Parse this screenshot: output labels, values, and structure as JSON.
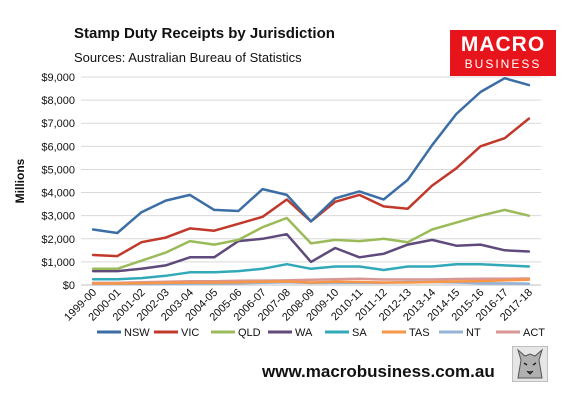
{
  "brand": {
    "line1": "MACRO",
    "line2": "BUSINESS"
  },
  "footer": {
    "url": "www.macrobusiness.com.au"
  },
  "chart_data": {
    "type": "line",
    "title": "Stamp Duty Receipts by Jurisdiction",
    "subtitle": "Sources: Australian Bureau of Statistics",
    "ylabel": "Millions",
    "xlabel": "",
    "ylim": [
      0,
      9000
    ],
    "yticks": [
      0,
      1000,
      2000,
      3000,
      4000,
      5000,
      6000,
      7000,
      8000,
      9000
    ],
    "ytick_labels": [
      "$0",
      "$1,000",
      "$2,000",
      "$3,000",
      "$4,000",
      "$5,000",
      "$6,000",
      "$7,000",
      "$8,000",
      "$9,000"
    ],
    "grid": true,
    "legend_position": "bottom",
    "categories": [
      "1999-00",
      "2000-01",
      "2001-02",
      "2002-03",
      "2003-04",
      "2004-05",
      "2005-06",
      "2006-07",
      "2007-08",
      "2008-09",
      "2009-10",
      "2010-11",
      "2011-12",
      "2012-13",
      "2013-14",
      "2014-15",
      "2015-16",
      "2016-17",
      "2017-18"
    ],
    "series": [
      {
        "name": "NSW",
        "color": "#3a6ea5",
        "values": [
          2400,
          2250,
          3150,
          3650,
          3900,
          3250,
          3200,
          4150,
          3900,
          2750,
          3750,
          4050,
          3700,
          4550,
          6050,
          7400,
          8350,
          8950,
          8650
        ]
      },
      {
        "name": "VIC",
        "color": "#c0392b",
        "values": [
          1300,
          1250,
          1850,
          2050,
          2450,
          2350,
          2650,
          2950,
          3700,
          2750,
          3600,
          3900,
          3400,
          3300,
          4300,
          5050,
          6000,
          6350,
          7200
        ]
      },
      {
        "name": "QLD",
        "color": "#9bbb59",
        "values": [
          700,
          700,
          1050,
          1400,
          1900,
          1750,
          1950,
          2500,
          2900,
          1800,
          1950,
          1900,
          2000,
          1850,
          2400,
          2700,
          3000,
          3250,
          3000
        ]
      },
      {
        "name": "WA",
        "color": "#604a7b",
        "values": [
          600,
          600,
          700,
          850,
          1200,
          1200,
          1900,
          2000,
          2200,
          1000,
          1600,
          1200,
          1350,
          1750,
          1950,
          1700,
          1750,
          1500,
          1450
        ]
      },
      {
        "name": "SA",
        "color": "#31a9b8",
        "values": [
          250,
          250,
          300,
          400,
          550,
          550,
          600,
          700,
          900,
          700,
          800,
          800,
          650,
          800,
          800,
          900,
          900,
          850,
          800
        ]
      },
      {
        "name": "TAS",
        "color": "#f79646",
        "values": [
          60,
          60,
          80,
          90,
          110,
          110,
          120,
          140,
          150,
          110,
          140,
          130,
          110,
          110,
          130,
          150,
          170,
          200,
          230
        ]
      },
      {
        "name": "NT",
        "color": "#95b3d7",
        "values": [
          30,
          30,
          40,
          40,
          60,
          70,
          80,
          100,
          120,
          90,
          100,
          100,
          100,
          130,
          130,
          110,
          80,
          70,
          60
        ]
      },
      {
        "name": "ACT",
        "color": "#d99694",
        "values": [
          90,
          90,
          120,
          140,
          160,
          160,
          180,
          190,
          200,
          230,
          250,
          270,
          240,
          240,
          240,
          260,
          270,
          270,
          280
        ]
      }
    ]
  }
}
